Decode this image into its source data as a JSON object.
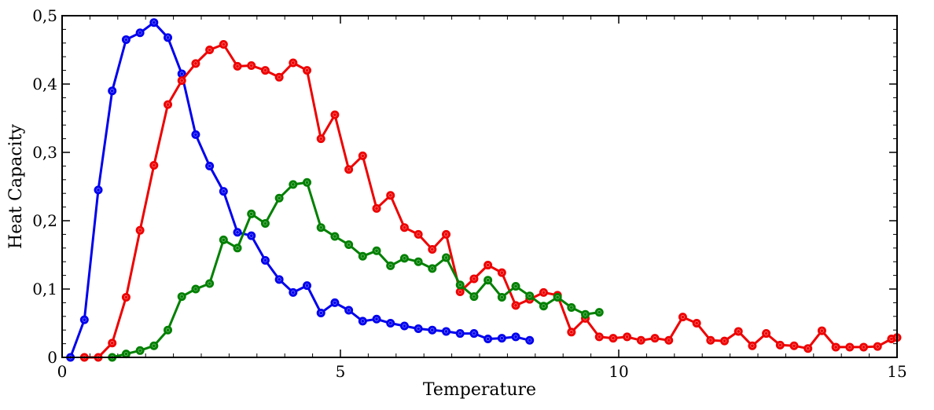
{
  "chart_data": {
    "type": "line",
    "title": "",
    "xlabel": "Temperature",
    "ylabel": "Heat Capacity",
    "xlim": [
      0,
      15
    ],
    "ylim": [
      0,
      0.5
    ],
    "x_major_ticks": [
      0,
      5,
      10,
      15
    ],
    "x_tick_labels": [
      "0",
      "5",
      "10",
      "15"
    ],
    "y_major_ticks": [
      0,
      0.1,
      0.2,
      0.3,
      0.4,
      0.5
    ],
    "y_tick_labels": [
      "0",
      "0,1",
      "0,2",
      "0,3",
      "0,4",
      "0,5"
    ],
    "x_minor_step": 0.5,
    "y_minor_step": 0.02,
    "grid": false,
    "legend": false,
    "series": [
      {
        "color": "#0000ee",
        "points": [
          [
            0.15,
            0.0
          ],
          [
            0.4,
            0.055
          ],
          [
            0.65,
            0.245
          ],
          [
            0.9,
            0.39
          ],
          [
            1.15,
            0.465
          ],
          [
            1.4,
            0.475
          ],
          [
            1.65,
            0.49
          ],
          [
            1.9,
            0.468
          ],
          [
            2.15,
            0.415
          ],
          [
            2.4,
            0.326
          ],
          [
            2.65,
            0.28
          ],
          [
            2.9,
            0.243
          ],
          [
            3.15,
            0.183
          ],
          [
            3.4,
            0.178
          ],
          [
            3.65,
            0.142
          ],
          [
            3.9,
            0.114
          ],
          [
            4.15,
            0.095
          ],
          [
            4.4,
            0.105
          ],
          [
            4.65,
            0.065
          ],
          [
            4.9,
            0.08
          ],
          [
            5.15,
            0.069
          ],
          [
            5.4,
            0.053
          ],
          [
            5.65,
            0.056
          ],
          [
            5.9,
            0.05
          ],
          [
            6.15,
            0.046
          ],
          [
            6.4,
            0.042
          ],
          [
            6.65,
            0.04
          ],
          [
            6.9,
            0.038
          ],
          [
            7.15,
            0.035
          ],
          [
            7.4,
            0.035
          ],
          [
            7.65,
            0.027
          ],
          [
            7.9,
            0.028
          ],
          [
            8.15,
            0.03
          ],
          [
            8.4,
            0.025
          ]
        ]
      },
      {
        "color": "#ee0000",
        "points": [
          [
            0.4,
            0.0
          ],
          [
            0.65,
            0.0
          ],
          [
            0.9,
            0.021
          ],
          [
            1.15,
            0.088
          ],
          [
            1.4,
            0.186
          ],
          [
            1.65,
            0.281
          ],
          [
            1.9,
            0.37
          ],
          [
            2.15,
            0.405
          ],
          [
            2.4,
            0.43
          ],
          [
            2.65,
            0.45
          ],
          [
            2.9,
            0.458
          ],
          [
            3.15,
            0.426
          ],
          [
            3.4,
            0.427
          ],
          [
            3.65,
            0.42
          ],
          [
            3.9,
            0.41
          ],
          [
            4.15,
            0.431
          ],
          [
            4.4,
            0.42
          ],
          [
            4.65,
            0.32
          ],
          [
            4.9,
            0.355
          ],
          [
            5.15,
            0.275
          ],
          [
            5.4,
            0.295
          ],
          [
            5.65,
            0.218
          ],
          [
            5.9,
            0.237
          ],
          [
            6.15,
            0.19
          ],
          [
            6.4,
            0.18
          ],
          [
            6.65,
            0.158
          ],
          [
            6.9,
            0.18
          ],
          [
            7.15,
            0.096
          ],
          [
            7.4,
            0.115
          ],
          [
            7.65,
            0.135
          ],
          [
            7.9,
            0.124
          ],
          [
            8.15,
            0.076
          ],
          [
            8.4,
            0.085
          ],
          [
            8.65,
            0.095
          ],
          [
            8.9,
            0.091
          ],
          [
            9.15,
            0.037
          ],
          [
            9.4,
            0.057
          ],
          [
            9.65,
            0.03
          ],
          [
            9.9,
            0.028
          ],
          [
            10.15,
            0.03
          ],
          [
            10.4,
            0.025
          ],
          [
            10.65,
            0.028
          ],
          [
            10.9,
            0.025
          ],
          [
            11.15,
            0.059
          ],
          [
            11.4,
            0.05
          ],
          [
            11.65,
            0.025
          ],
          [
            11.9,
            0.024
          ],
          [
            12.15,
            0.038
          ],
          [
            12.4,
            0.017
          ],
          [
            12.65,
            0.035
          ],
          [
            12.9,
            0.018
          ],
          [
            13.15,
            0.017
          ],
          [
            13.4,
            0.013
          ],
          [
            13.65,
            0.039
          ],
          [
            13.9,
            0.015
          ],
          [
            14.15,
            0.015
          ],
          [
            14.4,
            0.015
          ],
          [
            14.65,
            0.016
          ],
          [
            14.9,
            0.027
          ],
          [
            15.0,
            0.029
          ]
        ]
      },
      {
        "color": "#008000",
        "points": [
          [
            0.9,
            0.0
          ],
          [
            1.15,
            0.005
          ],
          [
            1.4,
            0.01
          ],
          [
            1.65,
            0.017
          ],
          [
            1.9,
            0.04
          ],
          [
            2.15,
            0.089
          ],
          [
            2.4,
            0.1
          ],
          [
            2.65,
            0.108
          ],
          [
            2.9,
            0.172
          ],
          [
            3.15,
            0.16
          ],
          [
            3.4,
            0.21
          ],
          [
            3.65,
            0.196
          ],
          [
            3.9,
            0.233
          ],
          [
            4.15,
            0.253
          ],
          [
            4.4,
            0.256
          ],
          [
            4.65,
            0.19
          ],
          [
            4.9,
            0.177
          ],
          [
            5.15,
            0.165
          ],
          [
            5.4,
            0.148
          ],
          [
            5.65,
            0.156
          ],
          [
            5.9,
            0.134
          ],
          [
            6.15,
            0.145
          ],
          [
            6.4,
            0.14
          ],
          [
            6.65,
            0.13
          ],
          [
            6.9,
            0.146
          ],
          [
            7.15,
            0.106
          ],
          [
            7.4,
            0.089
          ],
          [
            7.65,
            0.113
          ],
          [
            7.9,
            0.088
          ],
          [
            8.15,
            0.104
          ],
          [
            8.4,
            0.09
          ],
          [
            8.65,
            0.075
          ],
          [
            8.9,
            0.088
          ],
          [
            9.15,
            0.073
          ],
          [
            9.4,
            0.063
          ],
          [
            9.65,
            0.066
          ]
        ]
      }
    ]
  }
}
